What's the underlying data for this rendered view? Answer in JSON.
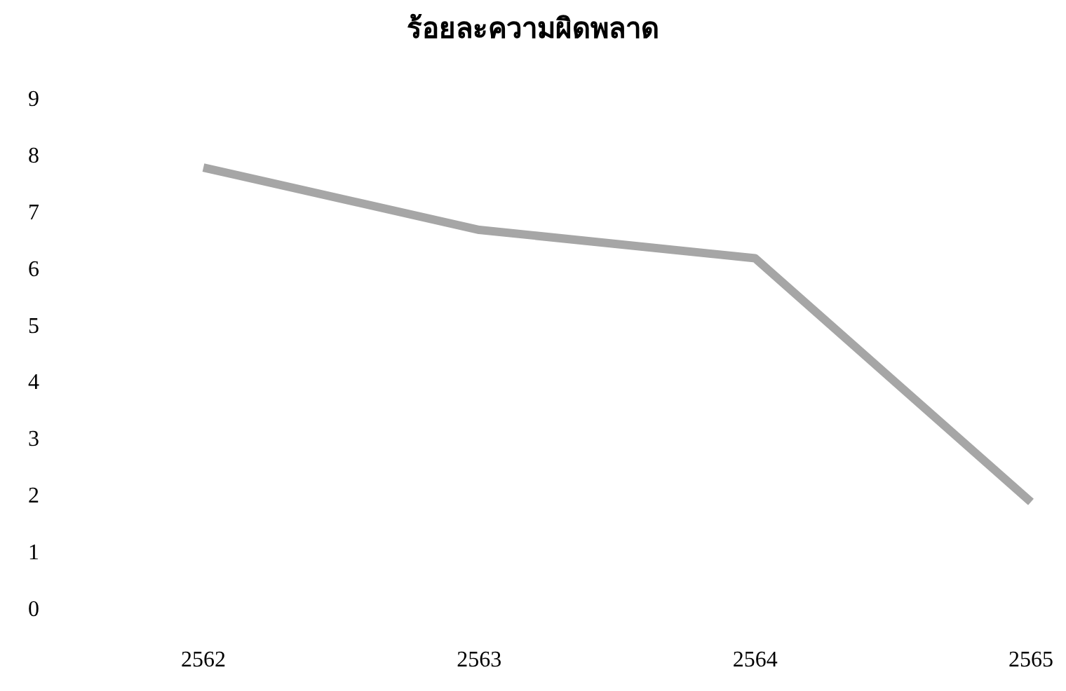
{
  "chart_data": {
    "type": "line",
    "title": "ร้อยละความผิดพลาด",
    "categories": [
      "2562",
      "2563",
      "2564",
      "2565"
    ],
    "series": [
      {
        "color": "#a6a6a6",
        "values": [
          7.8,
          6.7,
          6.2,
          1.9
        ]
      }
    ],
    "ylim": [
      0,
      9
    ],
    "yticks": [
      0,
      1,
      2,
      3,
      4,
      5,
      6,
      7,
      8,
      9
    ],
    "grid": false,
    "marker": "none"
  }
}
